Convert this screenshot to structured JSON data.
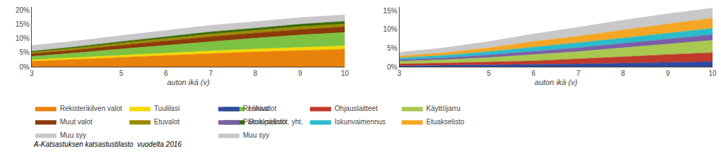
{
  "chart_data": [
    {
      "type": "area",
      "stacked": true,
      "grid": true,
      "legend": "bottom",
      "xlabel": "auton ikä (v)",
      "x": [
        3,
        4,
        5,
        6,
        7,
        8,
        9,
        10
      ],
      "xlim": [
        3,
        10
      ],
      "xticks": [
        3,
        5,
        6,
        7,
        8,
        9,
        10
      ],
      "ylim": [
        0,
        0.21
      ],
      "yticks": [
        {
          "value": 0,
          "label": "0%"
        },
        {
          "value": 0.05,
          "label": "5%"
        },
        {
          "value": 0.1,
          "label": "10%"
        },
        {
          "value": 0.15,
          "label": "15%"
        },
        {
          "value": 0.2,
          "label": "20%"
        }
      ],
      "series": [
        {
          "name": "Rekisterikilven valot",
          "color": "#E8820A",
          "values": [
            0.02,
            0.027,
            0.034,
            0.04,
            0.047,
            0.053,
            0.058,
            0.062
          ]
        },
        {
          "name": "Tuulilasi",
          "color": "#F5D800",
          "values": [
            0.005,
            0.006,
            0.007,
            0.008,
            0.009,
            0.01,
            0.011,
            0.012
          ]
        },
        {
          "name": "Lähivalot",
          "color": "#7DC242",
          "values": [
            0.012,
            0.016,
            0.022,
            0.028,
            0.033,
            0.038,
            0.043,
            0.047
          ]
        },
        {
          "name": "Muut valot",
          "color": "#8B3A0A",
          "values": [
            0.009,
            0.011,
            0.013,
            0.015,
            0.017,
            0.018,
            0.019,
            0.02
          ]
        },
        {
          "name": "Etuvalot",
          "color": "#9B8A00",
          "values": [
            0.005,
            0.006,
            0.007,
            0.008,
            0.009,
            0.009,
            0.01,
            0.01
          ]
        },
        {
          "name": "Etuakselisto",
          "color": "#3A6B0A",
          "values": [
            0.004,
            0.005,
            0.006,
            0.007,
            0.008,
            0.008,
            0.009,
            0.009
          ]
        },
        {
          "name": "Muu syy",
          "color": "#C8C8C8",
          "values": [
            0.02,
            0.02,
            0.021,
            0.022,
            0.023,
            0.023,
            0.023,
            0.023
          ]
        }
      ],
      "annotations": [
        "A-Katsastuksen katsastustilasto  vuodelta 2016"
      ]
    },
    {
      "type": "area",
      "stacked": true,
      "grid": true,
      "legend": "bottom",
      "xlabel": "auton ikä (v)",
      "x": [
        3,
        4,
        5,
        6,
        7,
        8,
        9,
        10
      ],
      "xlim": [
        3,
        10
      ],
      "xticks": [
        3,
        5,
        6,
        7,
        8,
        9,
        10
      ],
      "ylim": [
        0,
        0.16
      ],
      "yticks": [
        {
          "value": 0,
          "label": "0%"
        },
        {
          "value": 0.05,
          "label": "5%"
        },
        {
          "value": 0.1,
          "label": "10%"
        },
        {
          "value": 0.15,
          "label": "15%"
        }
      ],
      "series": [
        {
          "name": "Renkaat",
          "color": "#2E4A9E",
          "values": [
            0.003,
            0.004,
            0.005,
            0.006,
            0.008,
            0.01,
            0.012,
            0.014
          ]
        },
        {
          "name": "Ohjauslaitteet",
          "color": "#C0392B",
          "values": [
            0.005,
            0.006,
            0.008,
            0.01,
            0.013,
            0.017,
            0.021,
            0.024
          ]
        },
        {
          "name": "Käyttöjarru",
          "color": "#A8C850",
          "values": [
            0.007,
            0.009,
            0.012,
            0.017,
            0.02,
            0.024,
            0.028,
            0.033
          ]
        },
        {
          "name": "Pakok.päästöt. yht.",
          "color": "#7B5EA7",
          "values": [
            0.004,
            0.005,
            0.007,
            0.009,
            0.01,
            0.012,
            0.013,
            0.015
          ]
        },
        {
          "name": "Iskunvaimennus",
          "color": "#2ABCCA",
          "values": [
            0.005,
            0.007,
            0.009,
            0.011,
            0.013,
            0.014,
            0.016,
            0.017
          ]
        },
        {
          "name": "Etuakselisto",
          "color": "#F5A623",
          "values": [
            0.005,
            0.007,
            0.01,
            0.015,
            0.018,
            0.022,
            0.025,
            0.027
          ]
        },
        {
          "name": "Muu syy",
          "color": "#C8C8C8",
          "values": [
            0.01,
            0.013,
            0.017,
            0.02,
            0.024,
            0.026,
            0.027,
            0.027
          ]
        }
      ]
    }
  ]
}
